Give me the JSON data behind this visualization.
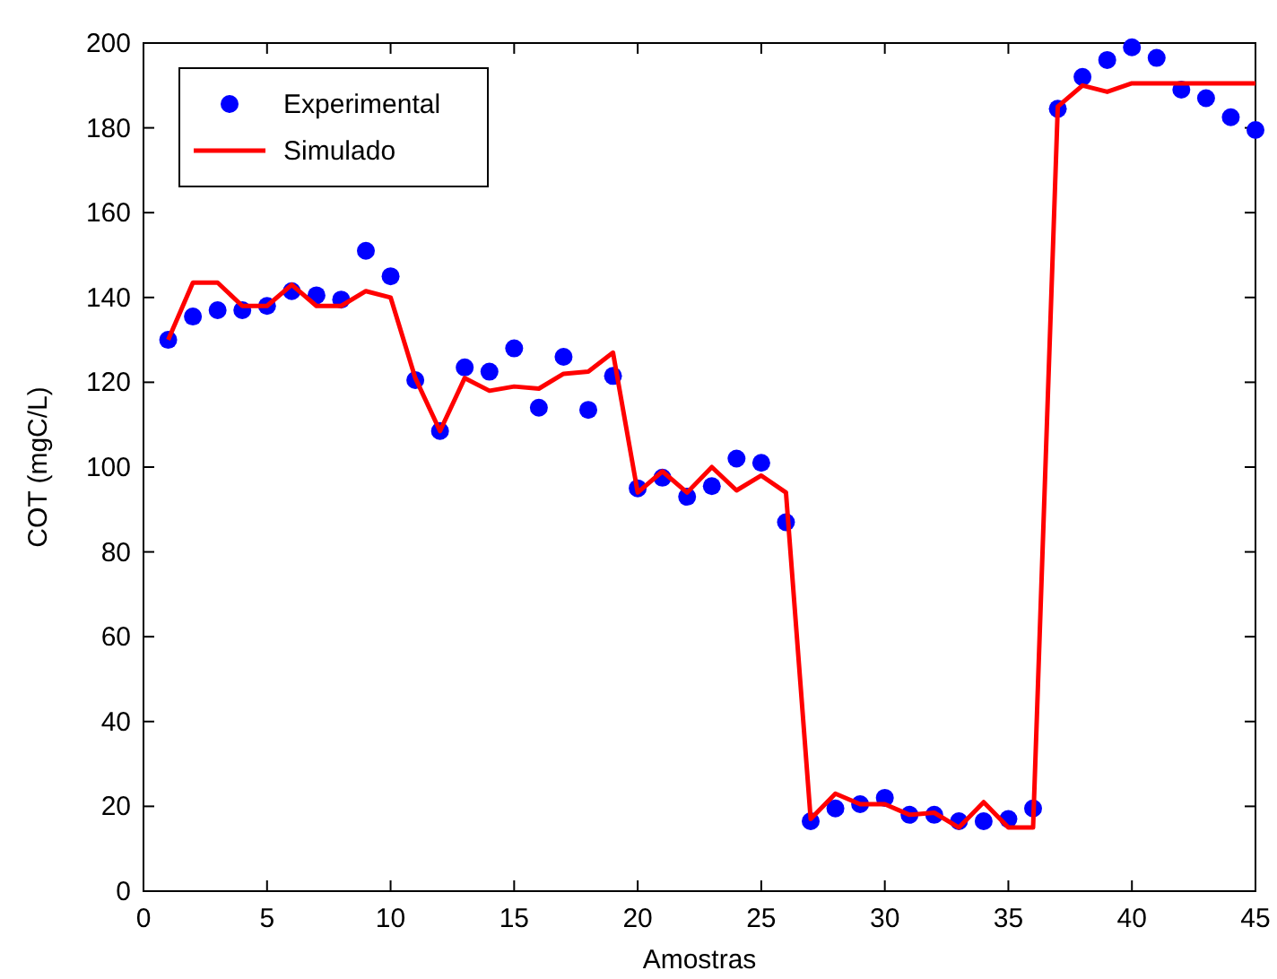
{
  "chart_data": {
    "type": "line",
    "xlabel": "Amostras",
    "ylabel": "COT (mgC/L)",
    "x": [
      1,
      2,
      3,
      4,
      5,
      6,
      7,
      8,
      9,
      10,
      11,
      12,
      13,
      14,
      15,
      16,
      17,
      18,
      19,
      20,
      21,
      22,
      23,
      24,
      25,
      26,
      27,
      28,
      29,
      30,
      31,
      32,
      33,
      34,
      35,
      36,
      37,
      38,
      39,
      40,
      41,
      42,
      43,
      44,
      45
    ],
    "xlim": [
      0,
      45
    ],
    "xticks": [
      0,
      5,
      10,
      15,
      20,
      25,
      30,
      35,
      40,
      45
    ],
    "ylim": [
      0,
      200
    ],
    "yticks": [
      0,
      20,
      40,
      60,
      80,
      100,
      120,
      140,
      160,
      180,
      200
    ],
    "grid": false,
    "legend": "top left",
    "series": [
      {
        "name": "Experimental",
        "type": "scatter",
        "marker": "circle",
        "color": "#0000ff",
        "values": [
          130,
          135.5,
          137,
          137,
          138,
          141.5,
          140.5,
          139.5,
          151,
          145,
          120.5,
          108.5,
          123.5,
          122.5,
          128,
          114,
          126,
          113.5,
          121.5,
          95,
          97.5,
          93,
          95.5,
          102,
          101,
          87,
          16.5,
          19.5,
          20.5,
          22,
          18,
          18,
          16.5,
          16.5,
          17,
          19.5,
          184.5,
          192,
          196,
          199,
          196.5,
          189,
          187,
          182.5,
          179.5
        ]
      },
      {
        "name": "Simulado",
        "type": "line",
        "marker": "none",
        "line_style": "solid",
        "color": "#ff0000",
        "values": [
          130,
          143.5,
          143.5,
          138,
          138,
          143,
          138,
          138,
          141.5,
          140,
          121,
          108.5,
          121,
          118,
          119,
          118.5,
          122,
          122.5,
          127,
          94,
          99,
          94,
          100,
          94.5,
          98,
          94,
          17,
          23,
          20.5,
          20.5,
          18,
          18.5,
          15,
          21,
          15,
          15,
          185,
          190,
          188.5,
          190.5,
          190.5,
          190.5,
          190.5,
          190.5,
          190.5
        ]
      }
    ]
  }
}
